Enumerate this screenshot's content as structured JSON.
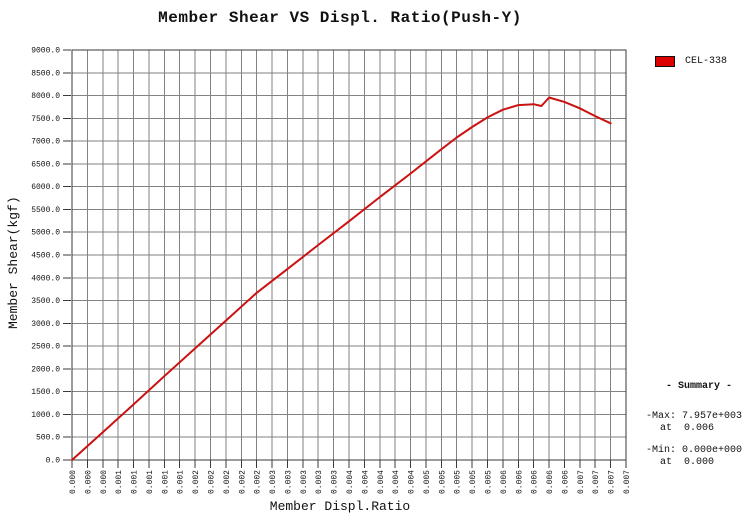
{
  "legend": {
    "label": "CEL-338",
    "swatch_color": "#dd0000"
  },
  "summary": {
    "heading": "- Summary -",
    "max_line": "-Max: 7.957e+003",
    "max_at_line": "at  0.006",
    "min_line": "-Min: 0.000e+000",
    "min_at_line": "at  0.000"
  },
  "chart_data": {
    "type": "line",
    "title": "Member Shear VS Displ. Ratio(Push-Y)",
    "xlabel": "Member Displ.Ratio",
    "ylabel": "Member Shear(kgf)",
    "xlim": [
      0,
      0.0072
    ],
    "ylim": [
      0,
      9000
    ],
    "grid": true,
    "legend_position": "top-right",
    "x_tick_step": 0.0002,
    "x_tick_labels": [
      "0.000",
      "0.000",
      "0.000",
      "0.001",
      "0.001",
      "0.001",
      "0.001",
      "0.001",
      "0.002",
      "0.002",
      "0.002",
      "0.002",
      "0.002",
      "0.003",
      "0.003",
      "0.003",
      "0.003",
      "0.003",
      "0.004",
      "0.004",
      "0.004",
      "0.004",
      "0.004",
      "0.005",
      "0.005",
      "0.005",
      "0.005",
      "0.005",
      "0.006",
      "0.006",
      "0.006",
      "0.006",
      "0.006",
      "0.007",
      "0.007",
      "0.007",
      "0.007"
    ],
    "y_tick_step": 500,
    "y_tick_labels": [
      "0.0",
      "500.0",
      "1000.0",
      "1500.0",
      "2000.0",
      "2500.0",
      "3000.0",
      "3500.0",
      "4000.0",
      "4500.0",
      "5000.0",
      "5500.0",
      "6000.0",
      "6500.0",
      "7000.0",
      "7500.0",
      "8000.0",
      "8500.0",
      "9000.0"
    ],
    "series": [
      {
        "name": "CEL-338",
        "color": "#cc1111",
        "points": [
          [
            0.0,
            0
          ],
          [
            0.0004,
            610
          ],
          [
            0.0008,
            1220
          ],
          [
            0.0012,
            1840
          ],
          [
            0.0016,
            2450
          ],
          [
            0.002,
            3060
          ],
          [
            0.0024,
            3670
          ],
          [
            0.0028,
            4190
          ],
          [
            0.0032,
            4720
          ],
          [
            0.0036,
            5240
          ],
          [
            0.004,
            5770
          ],
          [
            0.0044,
            6290
          ],
          [
            0.0048,
            6820
          ],
          [
            0.005,
            7080
          ],
          [
            0.0052,
            7310
          ],
          [
            0.0054,
            7520
          ],
          [
            0.0056,
            7690
          ],
          [
            0.0058,
            7790
          ],
          [
            0.006,
            7810
          ],
          [
            0.0061,
            7770
          ],
          [
            0.0062,
            7957
          ],
          [
            0.0064,
            7860
          ],
          [
            0.0066,
            7720
          ],
          [
            0.0068,
            7550
          ],
          [
            0.007,
            7390
          ]
        ]
      }
    ],
    "max": {
      "value": 7957,
      "at": 0.006
    },
    "min": {
      "value": 0,
      "at": 0.0
    }
  }
}
